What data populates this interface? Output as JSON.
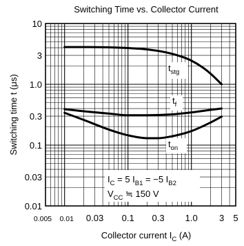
{
  "chart_data": {
    "type": "line",
    "title": "Switching Time vs. Collector Current",
    "xlabel": {
      "main": "Collector current  I",
      "sub": "C",
      "unit": "  (A)"
    },
    "ylabel": "Switching time  t  (μs)",
    "x_scale": "log",
    "y_scale": "log",
    "xlim": [
      0.005,
      5
    ],
    "ylim": [
      0.01,
      10
    ],
    "grid": true,
    "x_ticks": [
      {
        "value": 0.005,
        "label": "0.005"
      },
      {
        "value": 0.01,
        "label": "0.01"
      },
      {
        "value": 0.03,
        "label": "0.03"
      },
      {
        "value": 0.1,
        "label": "0.1"
      },
      {
        "value": 0.3,
        "label": "0.3"
      },
      {
        "value": 1,
        "label": "1.0"
      },
      {
        "value": 3,
        "label": "3"
      },
      {
        "value": 5,
        "label": "5"
      }
    ],
    "y_ticks": [
      {
        "value": 0.01,
        "label": "0.01"
      },
      {
        "value": 0.03,
        "label": "0.03"
      },
      {
        "value": 0.1,
        "label": "0.1"
      },
      {
        "value": 0.3,
        "label": "0.3"
      },
      {
        "value": 1,
        "label": "1.0"
      },
      {
        "value": 3,
        "label": "3"
      },
      {
        "value": 10,
        "label": "10"
      }
    ],
    "series": [
      {
        "name": "t",
        "sub": "stg",
        "x": [
          0.01,
          0.02,
          0.05,
          0.1,
          0.2,
          0.4,
          0.7,
          1.0,
          1.5,
          2.0,
          3.0
        ],
        "y": [
          4.1,
          4.1,
          4.05,
          3.95,
          3.75,
          3.35,
          2.85,
          2.45,
          1.9,
          1.5,
          1.0
        ]
      },
      {
        "name": "t",
        "sub": "f",
        "x": [
          0.01,
          0.02,
          0.05,
          0.1,
          0.2,
          0.5,
          1.0,
          2.0,
          3.0
        ],
        "y": [
          0.39,
          0.36,
          0.33,
          0.31,
          0.31,
          0.32,
          0.345,
          0.38,
          0.4
        ]
      },
      {
        "name": "t",
        "sub": "on",
        "x": [
          0.01,
          0.02,
          0.05,
          0.1,
          0.2,
          0.3,
          0.5,
          1.0,
          2.0,
          3.0
        ],
        "y": [
          0.34,
          0.26,
          0.18,
          0.145,
          0.13,
          0.13,
          0.14,
          0.17,
          0.235,
          0.295
        ]
      }
    ],
    "annotations": [
      {
        "parts": [
          "I",
          "C",
          " = 5 I",
          "B1",
          " = −5 I",
          "B2"
        ]
      },
      {
        "parts": [
          "V",
          "CC",
          " ≒ 150 V"
        ]
      }
    ]
  }
}
